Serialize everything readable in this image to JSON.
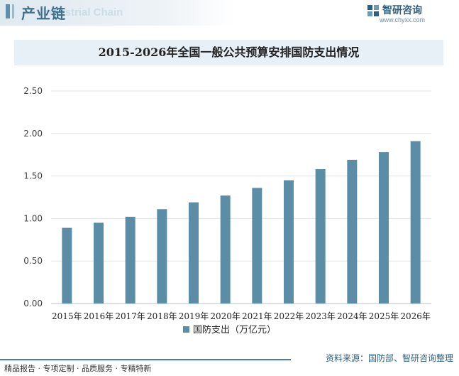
{
  "header": {
    "title": "产业链",
    "subtitle_en": "Industrial Chain",
    "logo_cn": "智研咨询",
    "logo_url": "www.chyxx.com"
  },
  "footer": {
    "services": "精品报告 · 专项定制 · 品质服务 · 专精特新",
    "source": "资料来源：国防部、智研咨询整理"
  },
  "colors": {
    "bar": "#5b8ea6",
    "accent": "#3f6f8a",
    "title_bg": "#e7f0f6"
  },
  "chart_data": {
    "type": "bar",
    "title": "2015-2026年全国一般公共预算安排国防支出情况",
    "categories": [
      "2015年",
      "2016年",
      "2017年",
      "2018年",
      "2019年",
      "2020年",
      "2021年",
      "2022年",
      "2023年",
      "2024年",
      "2025年",
      "2026年"
    ],
    "series": [
      {
        "name": "国防支出（万亿元）",
        "values": [
          0.89,
          0.95,
          1.02,
          1.11,
          1.19,
          1.27,
          1.36,
          1.45,
          1.58,
          1.69,
          1.78,
          1.91
        ]
      }
    ],
    "ylim": [
      0,
      2.5
    ],
    "yticks": [
      "0.00",
      "0.50",
      "1.00",
      "1.50",
      "2.00",
      "2.50"
    ],
    "ytick_values": [
      0,
      0.5,
      1.0,
      1.5,
      2.0,
      2.5
    ],
    "grid": true,
    "legend": "bottom-center"
  }
}
